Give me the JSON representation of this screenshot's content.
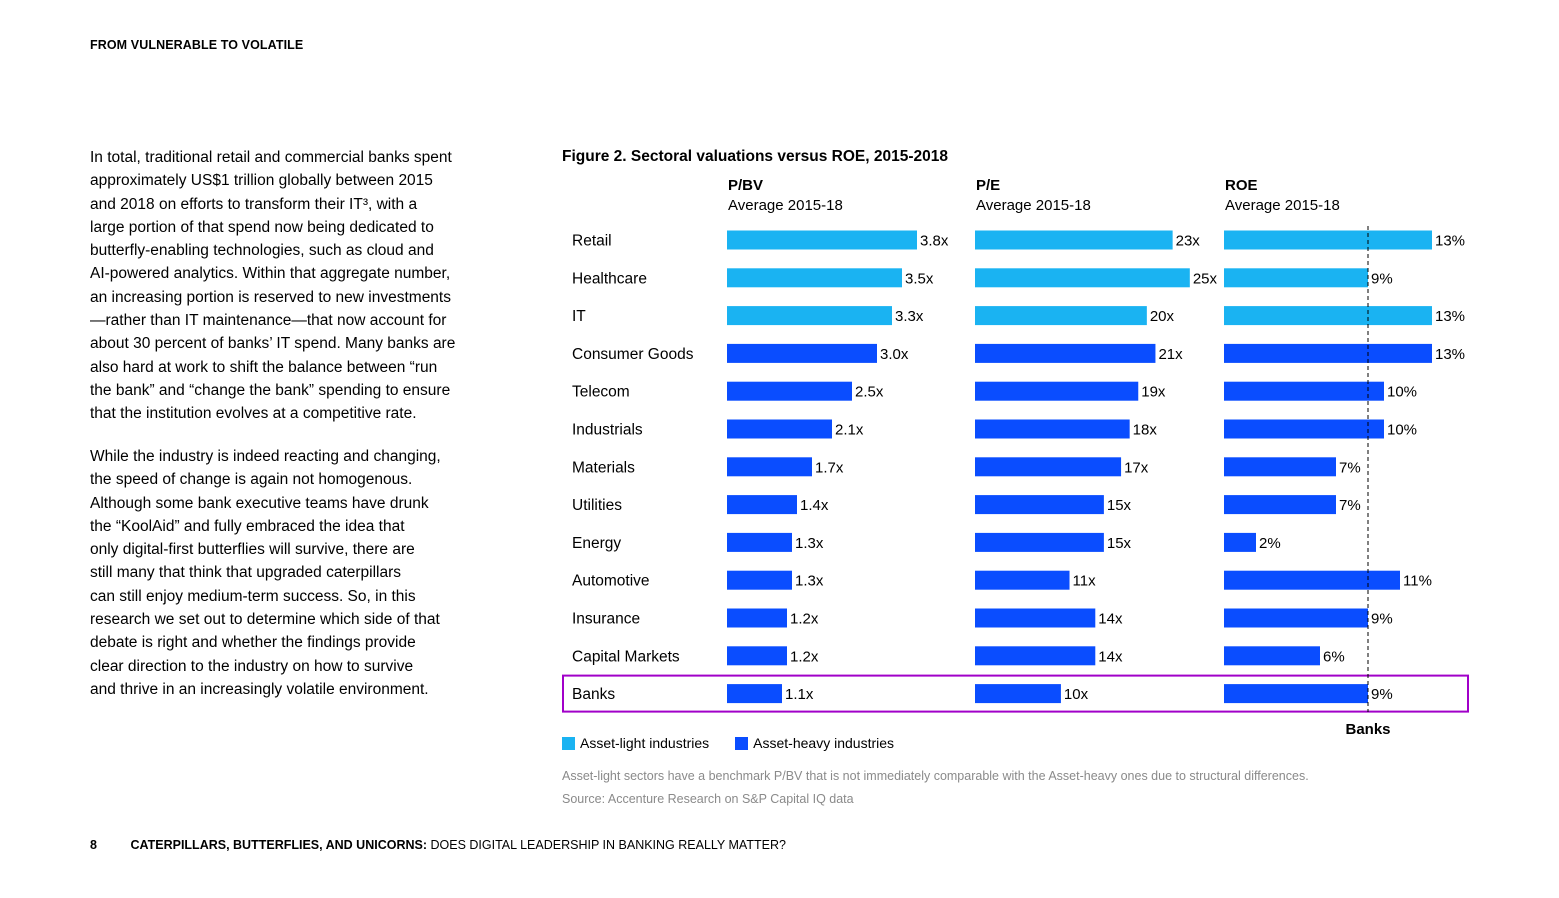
{
  "header": {
    "title": "FROM VULNERABLE TO VOLATILE"
  },
  "body": {
    "paragraph1": "In total, traditional retail and commercial banks spent\napproximately US$1 trillion globally between 2015\nand 2018 on efforts to transform their IT³, with a\nlarge portion of that spend now being dedicated to\nbutterfly-enabling technologies, such as cloud and\nAI-powered analytics. Within that aggregate number,\nan increasing portion is reserved to new investments\n—rather than IT maintenance—that now account for\nabout 30 percent of banks’ IT spend. Many banks are\nalso hard at work to shift the balance between “run\nthe bank” and “change the bank” spending to ensure\nthat the institution evolves at a competitive rate.",
    "paragraph2": "While the industry is indeed reacting and changing,\nthe speed of change is again not homogenous.\nAlthough some bank executive teams have drunk\nthe “KoolAid” and fully embraced the idea that\nonly digital-first butterflies will survive, there are\nstill many that think that upgraded caterpillars\ncan still enjoy medium-term success. So, in this\nresearch we set out to determine which side of that\ndebate is right and whether the findings provide\nclear direction to the industry on how to survive\nand thrive in an increasingly volatile environment."
  },
  "chart_data": {
    "type": "bar",
    "orientation": "horizontal",
    "title": "Figure 2. Sectoral valuations versus ROE, 2015-2018",
    "categories": [
      "Retail",
      "Healthcare",
      "IT",
      "Consumer Goods",
      "Telecom",
      "Industrials",
      "Materials",
      "Utilities",
      "Energy",
      "Automotive",
      "Insurance",
      "Capital Markets",
      "Banks"
    ],
    "group": [
      "light",
      "light",
      "light",
      "heavy",
      "heavy",
      "heavy",
      "heavy",
      "heavy",
      "heavy",
      "heavy",
      "heavy",
      "heavy",
      "heavy"
    ],
    "highlight_category": "Banks",
    "panels": [
      {
        "key": "pbv",
        "title": "P/BV",
        "subtitle": "Average 2015-18",
        "values": [
          3.8,
          3.5,
          3.3,
          3.0,
          2.5,
          2.1,
          1.7,
          1.4,
          1.3,
          1.3,
          1.2,
          1.2,
          1.1
        ],
        "labels": [
          "3.8x",
          "3.5x",
          "3.3x",
          "3.0x",
          "2.5x",
          "2.1x",
          "1.7x",
          "1.4x",
          "1.3x",
          "1.3x",
          "1.2x",
          "1.2x",
          "1.1x"
        ],
        "xlim": [
          0,
          4.2
        ]
      },
      {
        "key": "pe",
        "title": "P/E",
        "subtitle": "Average 2015-18",
        "values": [
          23,
          25,
          20,
          21,
          19,
          18,
          17,
          15,
          15,
          11,
          14,
          14,
          10
        ],
        "labels": [
          "23x",
          "25x",
          "20x",
          "21x",
          "19x",
          "18x",
          "17x",
          "15x",
          "15x",
          "11x",
          "14x",
          "14x",
          "10x"
        ],
        "xlim": [
          0,
          27
        ]
      },
      {
        "key": "roe",
        "title": "ROE",
        "subtitle": "Average 2015-18",
        "values": [
          13,
          9,
          13,
          13,
          10,
          10,
          7,
          7,
          2,
          11,
          9,
          6,
          9
        ],
        "labels": [
          "13%",
          "9%",
          "13%",
          "13%",
          "10%",
          "10%",
          "7%",
          "7%",
          "2%",
          "11%",
          "9%",
          "6%",
          "9%"
        ],
        "xlim": [
          0,
          15
        ],
        "reference_line": {
          "value": 9,
          "label": "Banks"
        }
      }
    ],
    "legend": [
      {
        "name": "Asset-light industries",
        "color": "#1ab3f2"
      },
      {
        "name": "Asset-heavy industries",
        "color": "#0a4dff"
      }
    ],
    "highlight_color": "#a100c9"
  },
  "notes": {
    "note": "Asset-light sectors have a benchmark P/BV that is not immediately comparable with the Asset-heavy ones due to structural differences.",
    "source": "Source: Accenture Research on S&P Capital IQ data"
  },
  "footer": {
    "page": "8",
    "title_bold": "CATERPILLARS, BUTTERFLIES, AND UNICORNS:",
    "title_rest": " DOES DIGITAL LEADERSHIP IN BANKING REALLY MATTER?"
  }
}
